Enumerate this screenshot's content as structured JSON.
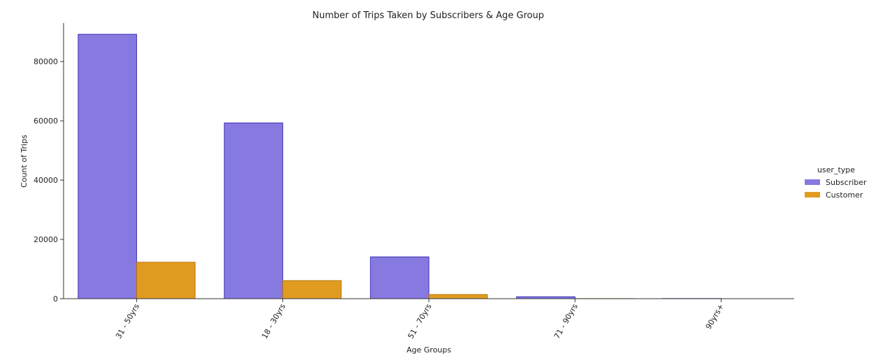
{
  "chart_data": {
    "type": "bar",
    "title": "Number of Trips Taken by Subscribers & Age Group",
    "xlabel": "Age Groups",
    "ylabel": "Count of Trips",
    "categories": [
      "31 - 50yrs",
      "18 - 30yrs",
      "51 - 70yrs",
      "71 - 90yrs",
      "90yrs+"
    ],
    "series": [
      {
        "name": "Subscriber",
        "values": [
          89200,
          59300,
          14100,
          650,
          60
        ],
        "color": "#8679e0",
        "edge": "#3a2fb5"
      },
      {
        "name": "Customer",
        "values": [
          12300,
          6100,
          1400,
          40,
          5
        ],
        "color": "#e09c21",
        "edge": "#b8740a"
      }
    ],
    "ylim": [
      0,
      93000
    ],
    "yticks": [
      0,
      20000,
      40000,
      60000,
      80000
    ],
    "grid": false,
    "legend": {
      "title": "user_type",
      "placement": "right"
    }
  }
}
